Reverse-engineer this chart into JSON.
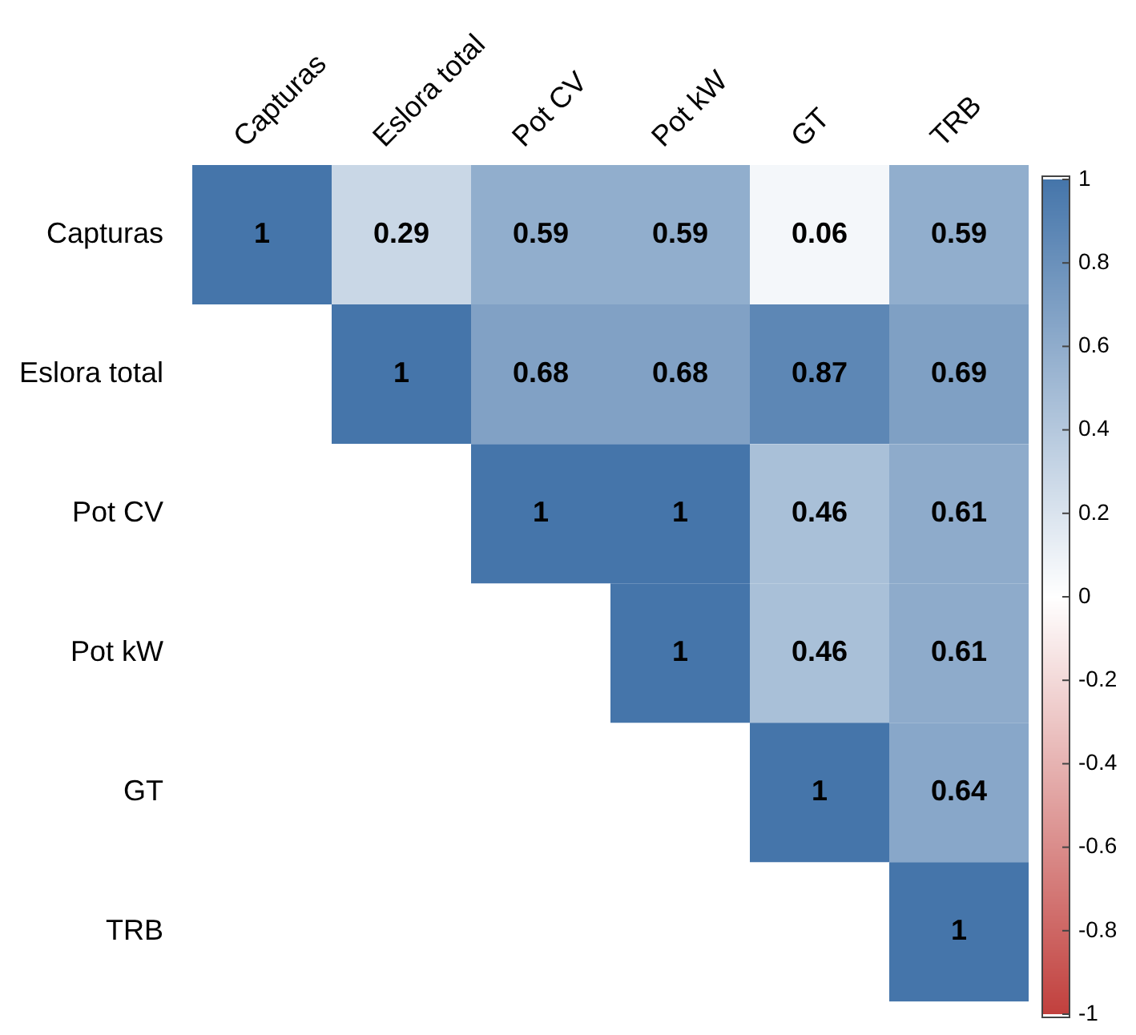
{
  "chart_data": {
    "type": "heatmap",
    "categories": [
      "Capturas",
      "Eslora total",
      "Pot CV",
      "Pot kW",
      "GT",
      "TRB"
    ],
    "y_categories": [
      "Capturas",
      "Eslora total",
      "Pot CV",
      "Pot kW",
      "GT",
      "TRB"
    ],
    "cells": [
      [
        1,
        0.29,
        0.59,
        0.59,
        0.06,
        0.59
      ],
      [
        null,
        1,
        0.68,
        0.68,
        0.87,
        0.69
      ],
      [
        null,
        null,
        1,
        1,
        0.46,
        0.61
      ],
      [
        null,
        null,
        null,
        1,
        0.46,
        0.61
      ],
      [
        null,
        null,
        null,
        null,
        1,
        0.64
      ],
      [
        null,
        null,
        null,
        null,
        null,
        1
      ]
    ],
    "data_labels": true,
    "colors": [
      "#c1403d",
      "#ffffff",
      "#4575aa"
    ],
    "clim": [
      -1,
      1
    ],
    "cticks": [
      -1,
      -0.8,
      -0.6,
      -0.4,
      -0.2,
      0,
      0.2,
      0.4,
      0.6,
      0.8,
      1
    ]
  }
}
